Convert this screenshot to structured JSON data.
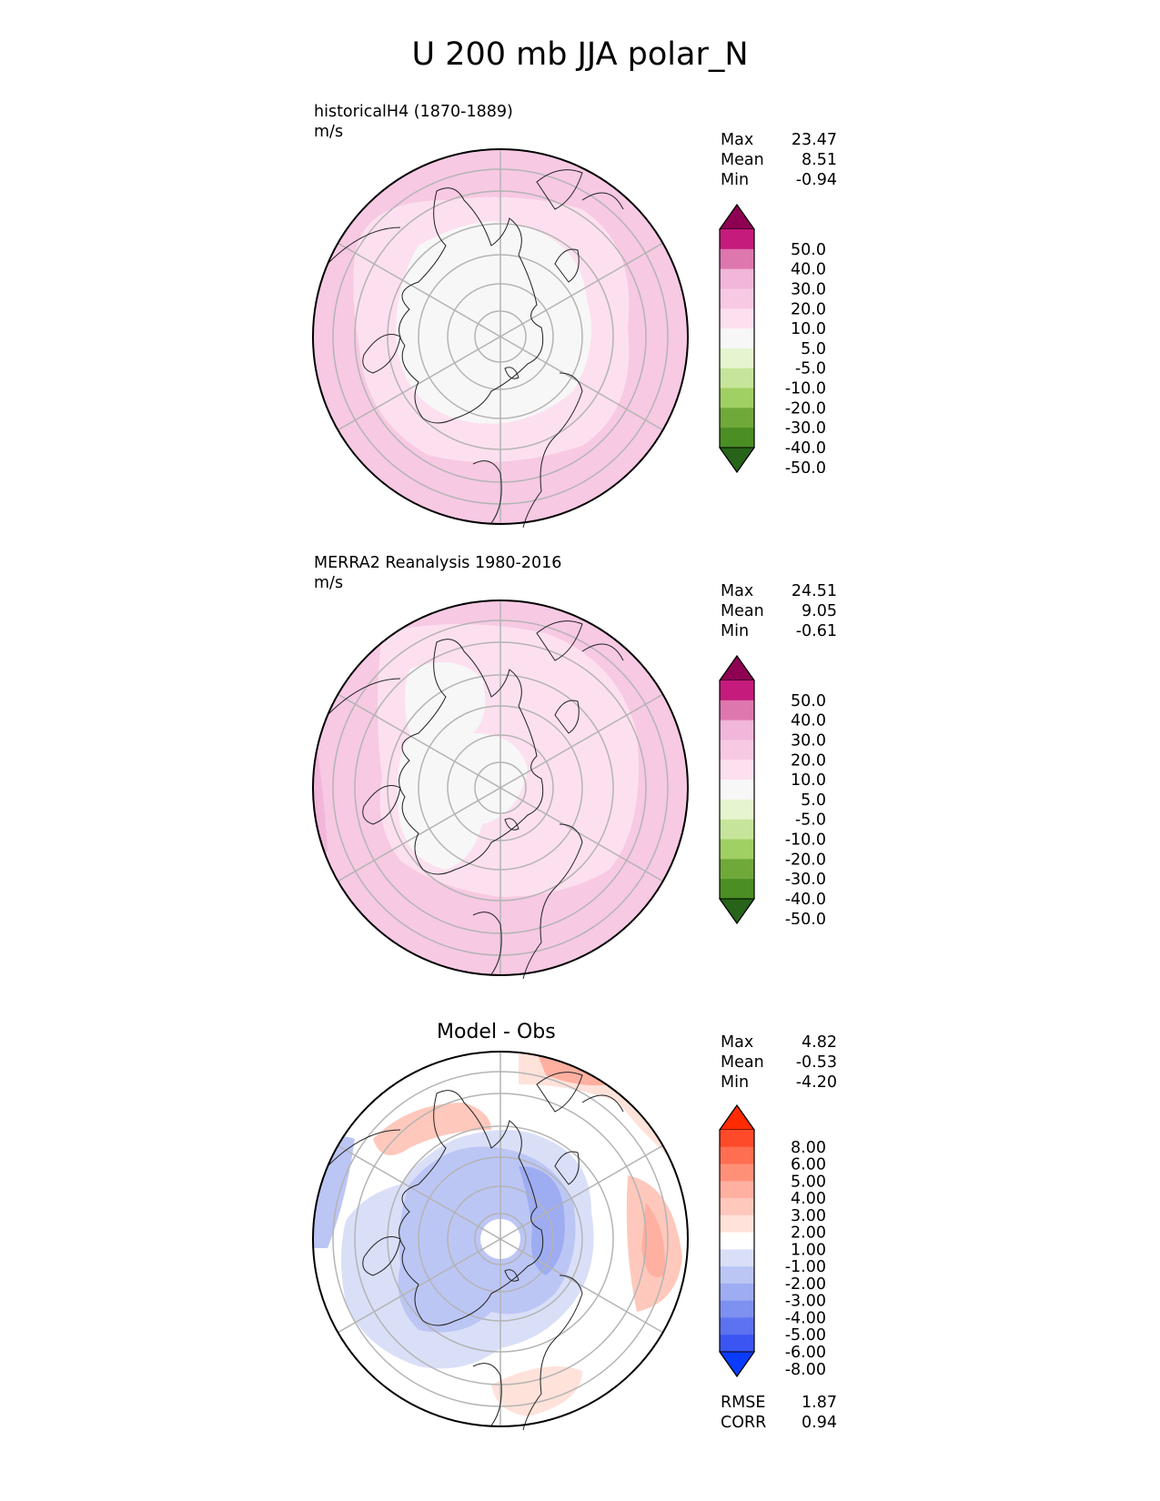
{
  "figure": {
    "title": "U 200 mb JJA polar_N"
  },
  "chart_data": [
    {
      "type": "heatmap",
      "projection": "north-polar-stereographic",
      "title": "historicalH4 (1870-1889)",
      "units": "m/s",
      "stats": [
        {
          "label": "Max",
          "value": "23.47"
        },
        {
          "label": "Mean",
          "value": "8.51"
        },
        {
          "label": "Min",
          "value": "-0.94"
        }
      ],
      "colorbar": {
        "extend": "both",
        "ticks": [
          "50.0",
          "40.0",
          "30.0",
          "20.0",
          "10.0",
          "5.0",
          "-5.0",
          "-10.0",
          "-20.0",
          "-30.0",
          "-40.0",
          "-50.0"
        ],
        "colors": [
          "#8e0152",
          "#c51b7d",
          "#de77ae",
          "#f1b6da",
          "#f7c9e3",
          "#fde0ef",
          "#f7f7f7",
          "#e6f5d0",
          "#c6e59a",
          "#a0cf63",
          "#6fa93a",
          "#4a8e24",
          "#276419"
        ]
      },
      "field_description": "mostly 5-10 m/s pink over mid-latitudes, near-zero (white) over the Arctic basin, 10-20 m/s belt near the outer latitudes with a 20-30 m/s patch in the lower-left"
    },
    {
      "type": "heatmap",
      "projection": "north-polar-stereographic",
      "title": "MERRA2 Reanalysis 1980-2016",
      "units": "m/s",
      "stats": [
        {
          "label": "Max",
          "value": "24.51"
        },
        {
          "label": "Mean",
          "value": "9.05"
        },
        {
          "label": "Min",
          "value": "-0.61"
        }
      ],
      "colorbar": {
        "extend": "both",
        "ticks": [
          "50.0",
          "40.0",
          "30.0",
          "20.0",
          "10.0",
          "5.0",
          "-5.0",
          "-10.0",
          "-20.0",
          "-30.0",
          "-40.0",
          "-50.0"
        ],
        "colors": [
          "#8e0152",
          "#c51b7d",
          "#de77ae",
          "#f1b6da",
          "#f7c9e3",
          "#fde0ef",
          "#f7f7f7",
          "#e6f5d0",
          "#c6e59a",
          "#a0cf63",
          "#6fa93a",
          "#4a8e24",
          "#276419"
        ]
      }
    },
    {
      "type": "heatmap",
      "projection": "north-polar-stereographic",
      "title": "Model - Obs",
      "stats": [
        {
          "label": "Max",
          "value": "4.82"
        },
        {
          "label": "Mean",
          "value": "-0.53"
        },
        {
          "label": "Min",
          "value": "-4.20"
        }
      ],
      "extra_stats": [
        {
          "label": "RMSE",
          "value": "1.87"
        },
        {
          "label": "CORR",
          "value": "0.94"
        }
      ],
      "colorbar": {
        "extend": "both",
        "ticks": [
          "8.00",
          "6.00",
          "5.00",
          "4.00",
          "3.00",
          "2.00",
          "1.00",
          "-1.00",
          "-2.00",
          "-3.00",
          "-4.00",
          "-5.00",
          "-6.00",
          "-8.00"
        ],
        "colors": [
          "#ff2a00",
          "#ff4a2a",
          "#ff6e50",
          "#ff9078",
          "#ffb0a0",
          "#ffc8bc",
          "#ffe2da",
          "#ffffff",
          "#dadff8",
          "#bcc6f5",
          "#9eacf2",
          "#7e90f0",
          "#5c72f0",
          "#3a55f2",
          "#0a3cff"
        ]
      }
    }
  ]
}
